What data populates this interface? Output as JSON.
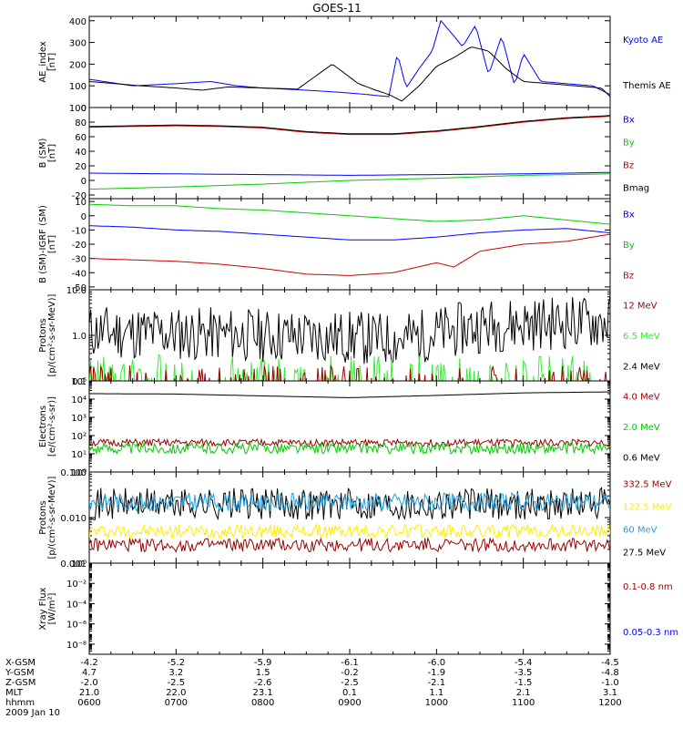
{
  "title": "GOES-11",
  "colors": {
    "black": "#000000",
    "blue": "#0000ff",
    "red": "#cc0000",
    "darkred": "#990000",
    "green": "#00cc00",
    "lightgreen": "#33ee33",
    "yellow": "#ffee00",
    "cyan": "#1ea0e0"
  },
  "chart_data": [
    {
      "id": "ae",
      "type": "line",
      "ylabel": [
        "AE_index",
        "[nT]"
      ],
      "ylim": [
        0,
        420
      ],
      "scale": "linear",
      "ticks": [
        0,
        100,
        200,
        300,
        400
      ],
      "tick_labels": [
        "0",
        "100",
        "200",
        "300",
        "400"
      ],
      "legend": [
        {
          "label": "Kyoto AE",
          "color": "blue"
        },
        {
          "label": "Themis AE",
          "color": "black"
        }
      ],
      "series": [
        {
          "name": "Kyoto AE",
          "color": "blue",
          "x": [
            6.0,
            6.5,
            7.0,
            7.4,
            7.7,
            8.0,
            8.5,
            8.9,
            9.2,
            9.45,
            9.55,
            9.65,
            9.8,
            9.95,
            10.05,
            10.2,
            10.3,
            10.45,
            10.6,
            10.75,
            10.9,
            11.0,
            11.2,
            11.5,
            11.8,
            12.0
          ],
          "y": [
            130,
            100,
            110,
            120,
            100,
            90,
            80,
            70,
            60,
            50,
            250,
            90,
            180,
            260,
            400,
            330,
            280,
            380,
            150,
            330,
            100,
            250,
            120,
            110,
            100,
            60
          ]
        },
        {
          "name": "Themis AE",
          "color": "black",
          "x": [
            6.0,
            6.3,
            6.6,
            7.0,
            7.3,
            7.6,
            8.0,
            8.4,
            8.8,
            9.1,
            9.3,
            9.45,
            9.6,
            9.8,
            10.0,
            10.2,
            10.4,
            10.6,
            10.8,
            11.0,
            11.3,
            11.6,
            11.9,
            12.0
          ],
          "y": [
            120,
            110,
            100,
            90,
            80,
            95,
            90,
            85,
            200,
            110,
            80,
            60,
            30,
            100,
            190,
            230,
            280,
            260,
            180,
            120,
            110,
            100,
            90,
            50
          ]
        }
      ]
    },
    {
      "id": "bsm",
      "type": "line",
      "ylabel": [
        "B (SM)",
        "[nT]"
      ],
      "ylim": [
        -25,
        100
      ],
      "scale": "linear",
      "ticks": [
        -20,
        0,
        20,
        40,
        60,
        80,
        100
      ],
      "tick_labels": [
        "-20",
        "0",
        "20",
        "40",
        "60",
        "80",
        "100"
      ],
      "legend": [
        {
          "label": "Bx",
          "color": "blue"
        },
        {
          "label": "By",
          "color": "green"
        },
        {
          "label": "Bz",
          "color": "red"
        },
        {
          "label": "Bmag",
          "color": "black"
        }
      ],
      "series": [
        {
          "name": "Bx",
          "color": "blue",
          "x": [
            6,
            7,
            8,
            9,
            10,
            11,
            12
          ],
          "y": [
            10,
            9,
            8,
            7,
            8,
            9,
            11
          ]
        },
        {
          "name": "By",
          "color": "green",
          "x": [
            6,
            7,
            8,
            9,
            10,
            11,
            12
          ],
          "y": [
            -12,
            -9,
            -5,
            0,
            3,
            7,
            9
          ]
        },
        {
          "name": "Bz",
          "color": "red",
          "x": [
            6,
            6.5,
            7,
            7.5,
            8,
            8.5,
            9,
            9.5,
            10,
            10.5,
            11,
            11.5,
            12
          ],
          "y": [
            73,
            74,
            75,
            74,
            72,
            66,
            63,
            63,
            67,
            73,
            80,
            85,
            88
          ]
        },
        {
          "name": "Bmag",
          "color": "black",
          "x": [
            6,
            6.5,
            7,
            7.5,
            8,
            8.5,
            9,
            9.5,
            10,
            10.5,
            11,
            11.5,
            12
          ],
          "y": [
            74,
            75,
            76,
            75,
            73,
            67,
            64,
            64,
            68,
            74,
            81,
            86,
            89
          ]
        }
      ]
    },
    {
      "id": "bgrf",
      "type": "line",
      "ylabel": [
        "B (SM)-IGRF (SM)",
        "[nT]"
      ],
      "ylim": [
        -52,
        12
      ],
      "scale": "linear",
      "ticks": [
        -50,
        -40,
        -30,
        -20,
        -10,
        0,
        10
      ],
      "tick_labels": [
        "-50",
        "-40",
        "-30",
        "-20",
        "-10",
        "0",
        "10"
      ],
      "legend": [
        {
          "label": "Bx",
          "color": "blue"
        },
        {
          "label": "By",
          "color": "green"
        },
        {
          "label": "Bz",
          "color": "red"
        }
      ],
      "series": [
        {
          "name": "Bx",
          "color": "blue",
          "x": [
            6,
            6.5,
            7,
            7.5,
            8,
            8.5,
            9,
            9.5,
            10,
            10.5,
            11,
            11.5,
            12
          ],
          "y": [
            -7,
            -8,
            -10,
            -11,
            -13,
            -15,
            -17,
            -17,
            -15,
            -12,
            -10,
            -9,
            -12
          ]
        },
        {
          "name": "By",
          "color": "green",
          "x": [
            6,
            6.5,
            7,
            7.5,
            8,
            8.5,
            9,
            9.5,
            10,
            10.5,
            11,
            11.5,
            12
          ],
          "y": [
            8,
            7,
            7,
            5,
            4,
            2,
            0,
            -2,
            -4,
            -3,
            0,
            -3,
            -6
          ]
        },
        {
          "name": "Bz",
          "color": "red",
          "x": [
            6,
            6.5,
            7,
            7.5,
            8,
            8.5,
            9,
            9.5,
            10,
            10.2,
            10.5,
            11,
            11.5,
            12
          ],
          "y": [
            -30,
            -31,
            -32,
            -34,
            -37,
            -41,
            -42,
            -40,
            -33,
            -36,
            -25,
            -20,
            -18,
            -13
          ]
        }
      ]
    },
    {
      "id": "protons_low",
      "type": "line",
      "ylabel": [
        "Protons",
        "[p/(cm²-s-sr-MeV)]"
      ],
      "ylim": [
        0.1,
        10
      ],
      "scale": "log",
      "ticks": [
        0.1,
        1,
        10
      ],
      "tick_labels": [
        "0.1",
        "1.0",
        "10.0"
      ],
      "legend": [
        {
          "label": "12 MeV",
          "color": "darkred"
        },
        {
          "label": "6.5 MeV",
          "color": "lightgreen"
        },
        {
          "label": "2.4 MeV",
          "color": "black"
        }
      ],
      "series": [
        {
          "name": "2.4 MeV",
          "color": "black",
          "noisy": true,
          "x": [
            6,
            7,
            8,
            9,
            9.5,
            10,
            10.5,
            11,
            11.5,
            12
          ],
          "y": [
            1.2,
            1.1,
            1.0,
            0.9,
            0.8,
            1.1,
            1.6,
            1.8,
            1.9,
            2.0
          ],
          "noise_decades": 0.6,
          "seed": 11
        },
        {
          "name": "6.5 MeV",
          "color": "lightgreen",
          "noisy": true,
          "sparse": true,
          "x": [
            6,
            12
          ],
          "y": [
            0.15,
            0.15
          ],
          "noise_decades": 0.4,
          "seed": 23
        },
        {
          "name": "12 MeV",
          "color": "darkred",
          "noisy": true,
          "sparse": true,
          "x": [
            6,
            12
          ],
          "y": [
            0.11,
            0.11
          ],
          "noise_decades": 0.3,
          "seed": 37
        }
      ]
    },
    {
      "id": "electrons",
      "type": "line",
      "ylabel": [
        "Electrons",
        "[e/(cm²-s-sr)]"
      ],
      "ylim": [
        1,
        100000
      ],
      "scale": "log",
      "ticks": [
        1,
        10,
        100,
        1000,
        10000,
        100000
      ],
      "tick_labels": [
        "10⁰",
        "10¹",
        "10²",
        "10³",
        "10⁴",
        "10⁵"
      ],
      "legend": [
        {
          "label": "4.0 MeV",
          "color": "darkred"
        },
        {
          "label": "2.0 MeV",
          "color": "green"
        },
        {
          "label": "0.6 MeV",
          "color": "black"
        }
      ],
      "series": [
        {
          "name": "0.6 MeV",
          "color": "black",
          "x": [
            6,
            7,
            8,
            9,
            10,
            11,
            12
          ],
          "y": [
            20000,
            19000,
            15000,
            12000,
            16000,
            22000,
            25000
          ]
        },
        {
          "name": "4.0 MeV",
          "color": "darkred",
          "noisy": true,
          "x": [
            6,
            12
          ],
          "y": [
            40,
            40
          ],
          "noise_decades": 0.2,
          "seed": 51
        },
        {
          "name": "2.0 MeV",
          "color": "green",
          "noisy": true,
          "x": [
            6,
            12
          ],
          "y": [
            20,
            20
          ],
          "noise_decades": 0.3,
          "seed": 63
        }
      ]
    },
    {
      "id": "protons_high",
      "type": "line",
      "ylabel": [
        "Protons",
        "[p/(cm²-s-sr-MeV)]"
      ],
      "ylim": [
        0.001,
        0.1
      ],
      "scale": "log",
      "ticks": [
        0.001,
        0.01,
        0.1
      ],
      "tick_labels": [
        "0.001",
        "0.010",
        "0.100"
      ],
      "legend": [
        {
          "label": "332.5 MeV",
          "color": "darkred"
        },
        {
          "label": "122.5 MeV",
          "color": "yellow"
        },
        {
          "label": "60 MeV",
          "color": "cyan"
        },
        {
          "label": "27.5 MeV",
          "color": "black"
        }
      ],
      "series": [
        {
          "name": "27.5 MeV",
          "color": "black",
          "noisy": true,
          "x": [
            6,
            12
          ],
          "y": [
            0.02,
            0.02
          ],
          "noise_decades": 0.35,
          "seed": 71
        },
        {
          "name": "60 MeV",
          "color": "cyan",
          "noisy": true,
          "x": [
            6,
            12
          ],
          "y": [
            0.022,
            0.022
          ],
          "noise_decades": 0.2,
          "seed": 83
        },
        {
          "name": "122.5 MeV",
          "color": "yellow",
          "noisy": true,
          "x": [
            6,
            12
          ],
          "y": [
            0.005,
            0.005
          ],
          "noise_decades": 0.15,
          "seed": 97
        },
        {
          "name": "332.5 MeV",
          "color": "darkred",
          "noisy": true,
          "x": [
            6,
            12
          ],
          "y": [
            0.0025,
            0.0025
          ],
          "noise_decades": 0.15,
          "seed": 109
        }
      ]
    },
    {
      "id": "xray",
      "type": "line",
      "ylabel": [
        "Xray Flux",
        "[W/m²]"
      ],
      "ylim": [
        1e-09,
        1
      ],
      "scale": "log",
      "ticks": [
        1e-08,
        1e-06,
        0.0001,
        0.01,
        1
      ],
      "tick_labels": [
        "10⁻⁸",
        "10⁻⁶",
        "10⁻⁴",
        "10⁻²",
        "10⁰"
      ],
      "legend": [
        {
          "label": "0.1-0.8 nm",
          "color": "darkred"
        },
        {
          "label": "0.05-0.3 nm",
          "color": "blue"
        }
      ],
      "series": []
    }
  ],
  "x_axis": {
    "hours": [
      6,
      7,
      8,
      9,
      10,
      11,
      12
    ],
    "rows": [
      {
        "label": "X-GSM",
        "values": [
          "-4.2",
          "-5.2",
          "-5.9",
          "-6.1",
          "-6.0",
          "-5.4",
          "-4.5"
        ]
      },
      {
        "label": "Y-GSM",
        "values": [
          "4.7",
          "3.2",
          "1.5",
          "-0.2",
          "-1.9",
          "-3.5",
          "-4.8"
        ]
      },
      {
        "label": "Z-GSM",
        "values": [
          "-2.0",
          "-2.5",
          "-2.6",
          "-2.5",
          "-2.1",
          "-1.5",
          "-1.0"
        ]
      },
      {
        "label": "MLT",
        "values": [
          "21.0",
          "22.0",
          "23.1",
          "0.1",
          "1.1",
          "2.1",
          "3.1"
        ]
      },
      {
        "label": "hhmm",
        "values": [
          "0600",
          "0700",
          "0800",
          "0900",
          "1000",
          "1100",
          "1200"
        ]
      }
    ],
    "date": "2009 Jan 10"
  }
}
